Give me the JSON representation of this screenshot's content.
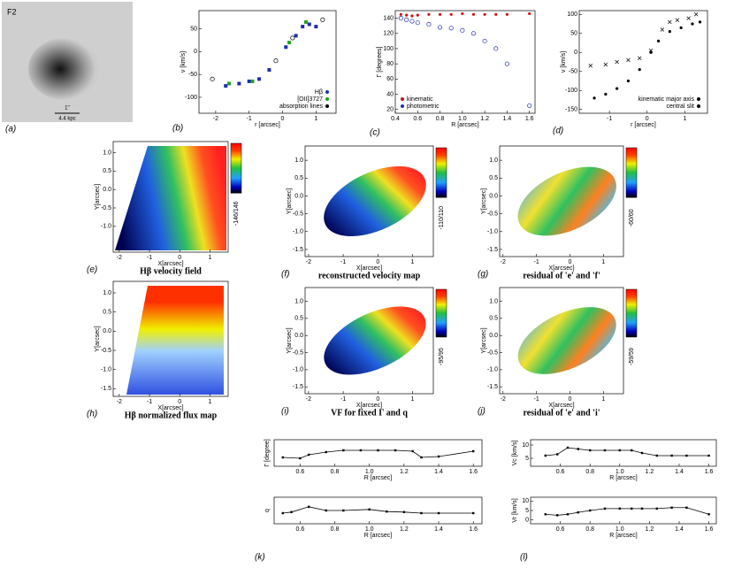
{
  "figure": {
    "image": {
      "label": "(a)",
      "galaxy": "F2",
      "scale_top": "1''",
      "scale_bottom": "4.4 kpc"
    },
    "panels": [
      {
        "type": "plot",
        "label": "(b)",
        "xlabel": "r [arcsec]",
        "ylabel": "v [km/s]",
        "xlim": [
          -2.5,
          1.6
        ],
        "ylim": [
          -135,
          90
        ],
        "xticks": [
          -2,
          -1,
          0,
          1
        ],
        "yticks": [
          -100,
          -50,
          0,
          50
        ],
        "legend_corner": "lower right",
        "series": [
          {
            "name": "Hβ",
            "color": "#1f2fb0",
            "marker": "square",
            "x": [
              -1.7,
              -1.3,
              -1.0,
              -0.7,
              -0.4,
              0.1,
              0.4,
              0.6,
              0.8,
              1.0
            ],
            "values": [
              -75,
              -70,
              -65,
              -60,
              -40,
              10,
              35,
              55,
              60,
              55
            ]
          },
          {
            "name": "[OII]3727",
            "color": "#22a022",
            "marker": "square",
            "x": [
              -1.6,
              -0.9,
              0.2,
              0.7
            ],
            "values": [
              -70,
              -65,
              20,
              65
            ]
          },
          {
            "name": "absorption lines",
            "color": "#000000",
            "marker": "circle",
            "x": [
              -2.1,
              -0.2,
              0.3,
              1.2
            ],
            "values": [
              -60,
              -20,
              30,
              70
            ]
          }
        ]
      },
      {
        "type": "plot",
        "label": "(c)",
        "xlabel": "R [arcsec]",
        "ylabel": "Γ [degrees]",
        "xlim": [
          0.4,
          1.65
        ],
        "ylim": [
          15,
          150
        ],
        "xticks": [
          0.4,
          0.6,
          0.8,
          {
            "value": 1,
            "label": "1.0"
          },
          1.2,
          1.4,
          1.6
        ],
        "yticks": [
          20,
          40,
          60,
          80,
          100,
          120,
          140
        ],
        "legend_corner": "lower left",
        "series": [
          {
            "name": "kinematic",
            "color": "#d01010",
            "marker": "dot",
            "x": [
              0.45,
              0.5,
              0.55,
              0.6,
              0.7,
              0.8,
              0.9,
              1.0,
              1.1,
              1.2,
              1.3,
              1.4,
              1.6
            ],
            "values": [
              145,
              144,
              143,
              144,
              145,
              145,
              145,
              146,
              145,
              145,
              145,
              145,
              146
            ]
          },
          {
            "name": "photometric",
            "color": "#1f2fb0",
            "marker": "circle",
            "x": [
              0.45,
              0.5,
              0.55,
              0.6,
              0.7,
              0.8,
              0.9,
              1.0,
              1.1,
              1.2,
              1.3,
              1.4,
              1.6
            ],
            "values": [
              140,
              138,
              136,
              134,
              132,
              128,
              127,
              124,
              120,
              110,
              100,
              80,
              25
            ]
          }
        ]
      },
      {
        "type": "plot",
        "label": "(d)",
        "xlabel": "r [arcsec]",
        "ylabel": "v [km/s]",
        "xlim": [
          -1.8,
          1.6
        ],
        "ylim": [
          -160,
          110
        ],
        "xticks": [
          -1,
          0,
          1
        ],
        "yticks": [
          -150,
          -100,
          -50,
          0,
          50,
          100
        ],
        "legend_corner": "lower right",
        "series": [
          {
            "name": "kinematic major axis",
            "color": "#000000",
            "marker": "x",
            "x": [
              -1.5,
              -1.1,
              -0.8,
              -0.5,
              -0.2,
              0.1,
              0.4,
              0.6,
              0.8,
              1.1,
              1.3
            ],
            "values": [
              -35,
              -32,
              -25,
              -20,
              -15,
              5,
              60,
              80,
              85,
              90,
              100
            ]
          },
          {
            "name": "central slit",
            "color": "#000000",
            "marker": "dot",
            "x": [
              -1.4,
              -1.1,
              -0.8,
              -0.5,
              -0.2,
              0.1,
              0.3,
              0.6,
              0.9,
              1.2,
              1.4
            ],
            "values": [
              -120,
              -110,
              -95,
              -75,
              -45,
              0,
              30,
              55,
              65,
              75,
              80
            ]
          }
        ]
      },
      {
        "type": "map",
        "shape": "wedge",
        "label": "(e)",
        "caption": "Hβ velocity field",
        "colorbar": "-146/146",
        "xlabel": "X[arcsec]",
        "ylabel": "Y[arcsec]",
        "xlim": [
          -2.2,
          1.6
        ],
        "ylim": [
          -1.7,
          1.3
        ],
        "xticks": [
          -2,
          -1,
          0,
          1
        ],
        "yticks": [
          {
            "value": 1,
            "label": "1.0"
          },
          0.5,
          {
            "value": 0,
            "label": "0.0"
          },
          -0.5,
          {
            "value": -1,
            "label": "-1.0"
          }
        ]
      },
      {
        "type": "map",
        "shape": "ellipse",
        "label": "(f)",
        "caption": "reconstructed velocity map",
        "colorbar": "-110/110",
        "xlabel": "X[arcsec]",
        "ylabel": "Y[arcsec]",
        "xlim": [
          -2.1,
          1.6
        ],
        "ylim": [
          -1.7,
          1.4
        ],
        "xticks": [
          -2,
          -1,
          0,
          1
        ],
        "yticks": [
          {
            "value": 1,
            "label": "1.0"
          },
          0.5,
          {
            "value": 0,
            "label": "0.0"
          },
          -0.5,
          {
            "value": -1,
            "label": "-1.0"
          },
          -1.5
        ]
      },
      {
        "type": "map",
        "shape": "residual",
        "label": "(g)",
        "caption": "residual of 'e' and 'f'",
        "colorbar": "-60/60",
        "xlabel": "X[arcsec]",
        "ylabel": "Y[arcsec]",
        "xlim": [
          -2.1,
          1.6
        ],
        "ylim": [
          -1.7,
          1.4
        ],
        "xticks": [
          -2,
          -1,
          0,
          1
        ],
        "yticks": [
          {
            "value": 1,
            "label": "1.0"
          },
          0.5,
          {
            "value": 0,
            "label": "0.0"
          },
          -0.5,
          {
            "value": -1,
            "label": "-1.0"
          },
          -1.5
        ]
      },
      {
        "type": "map",
        "shape": "flux",
        "label": "(h)",
        "caption": "Hβ normalized flux map",
        "xlabel": "X[arcsec]",
        "ylabel": "Y[arcsec]",
        "xlim": [
          -2.2,
          1.6
        ],
        "ylim": [
          -1.7,
          1.3
        ],
        "xticks": [
          -2,
          -1,
          0,
          1
        ],
        "yticks": [
          {
            "value": 1,
            "label": "1.0"
          },
          0.5,
          {
            "value": 0,
            "label": "0.0"
          },
          -0.5,
          {
            "value": -1,
            "label": "-1.0"
          },
          -1.5
        ]
      },
      {
        "type": "map",
        "shape": "ellipse",
        "label": "(i)",
        "caption": "VF for fixed Γ and q",
        "colorbar": "-95/95",
        "xlabel": "X[arcsec]",
        "ylabel": "Y[arcsec]",
        "xlim": [
          -2.1,
          1.6
        ],
        "ylim": [
          -1.7,
          1.4
        ],
        "xticks": [
          -2,
          -1,
          0,
          1
        ],
        "yticks": [
          {
            "value": 1,
            "label": "1.0"
          },
          0.5,
          {
            "value": 0,
            "label": "0.0"
          },
          -0.5,
          {
            "value": -1,
            "label": "-1.0"
          },
          -1.5
        ]
      },
      {
        "type": "map",
        "shape": "residual",
        "label": "(j)",
        "caption": "residual of 'e' and 'i'",
        "colorbar": "-59/59",
        "xlabel": "X[arcsec]",
        "ylabel": "Y[arcsec]",
        "xlim": [
          -2.1,
          1.6
        ],
        "ylim": [
          -1.7,
          1.4
        ],
        "xticks": [
          -2,
          -1,
          0,
          1
        ],
        "yticks": [
          {
            "value": 1,
            "label": "1.0"
          },
          0.5,
          {
            "value": 0,
            "label": "0.0"
          },
          -0.5,
          {
            "value": -1,
            "label": "-1.0"
          },
          -1.5
        ]
      },
      {
        "type": "plot",
        "ylabel": "Γ [degree]",
        "xlabel": "R [arcsec]",
        "xlim": [
          0.45,
          1.65
        ],
        "ylim": [
          130,
          160
        ],
        "xticks": [
          0.6,
          0.8,
          {
            "value": 1,
            "label": "1.0"
          },
          1.2,
          1.4,
          1.6
        ],
        "series": [
          {
            "color": "#000000",
            "marker": "line",
            "x": [
              0.5,
              0.6,
              0.65,
              0.75,
              0.85,
              0.95,
              1.05,
              1.15,
              1.25,
              1.3,
              1.4,
              1.6
            ],
            "values": [
              140,
              139,
              143,
              146,
              148,
              148,
              148,
              148,
              147,
              140,
              141,
              147
            ]
          }
        ]
      },
      {
        "type": "plot",
        "label": "(k)",
        "ylabel": "q",
        "xlabel": "R [arcsec]",
        "xlim": [
          0.45,
          1.65
        ],
        "ylim": [
          0.2,
          0.7
        ],
        "xticks": [
          0.6,
          0.8,
          {
            "value": 1,
            "label": "1.0"
          },
          1.2,
          1.4,
          1.6
        ],
        "series": [
          {
            "color": "#000000",
            "marker": "line",
            "x": [
              0.5,
              0.55,
              0.65,
              0.75,
              0.85,
              1.0,
              1.1,
              1.2,
              1.3,
              1.4,
              1.6
            ],
            "values": [
              0.4,
              0.42,
              0.52,
              0.45,
              0.45,
              0.47,
              0.43,
              0.42,
              0.4,
              0.4,
              0.4
            ]
          }
        ]
      },
      {
        "type": "plot",
        "ylabel": "Vc [km/s]",
        "xlabel": "R [arcsec]",
        "xlim": [
          0.4,
          1.65
        ],
        "ylim": [
          2,
          12
        ],
        "xticks": [
          0.6,
          0.8,
          {
            "value": 1,
            "label": "1.0"
          },
          1.2,
          1.4,
          1.6
        ],
        "yticks": [
          5,
          10
        ],
        "series": [
          {
            "color": "#000000",
            "marker": "line",
            "x": [
              0.5,
              0.58,
              0.65,
              0.72,
              0.8,
              0.9,
              1.0,
              1.08,
              1.15,
              1.25,
              1.35,
              1.45,
              1.6
            ],
            "values": [
              6,
              6.5,
              9,
              8.5,
              8,
              8,
              8,
              8,
              7,
              6,
              6,
              6,
              6
            ]
          }
        ]
      },
      {
        "type": "plot",
        "label": "(l)",
        "ylabel": "Vr [km/s]",
        "xlabel": "R [arcsec]",
        "xlim": [
          0.4,
          1.65
        ],
        "ylim": [
          -2,
          12
        ],
        "xticks": [
          0.6,
          0.8,
          {
            "value": 1,
            "label": "1.0"
          },
          1.2,
          1.4,
          1.6
        ],
        "yticks": [
          0,
          5,
          10
        ],
        "series": [
          {
            "color": "#000000",
            "marker": "line",
            "x": [
              0.5,
              0.58,
              0.65,
              0.72,
              0.8,
              0.9,
              1.0,
              1.08,
              1.15,
              1.25,
              1.35,
              1.45,
              1.6
            ],
            "values": [
              3,
              2.5,
              3,
              4,
              5,
              6,
              6,
              6,
              6,
              6,
              6.5,
              6.5,
              3
            ]
          }
        ]
      }
    ]
  }
}
